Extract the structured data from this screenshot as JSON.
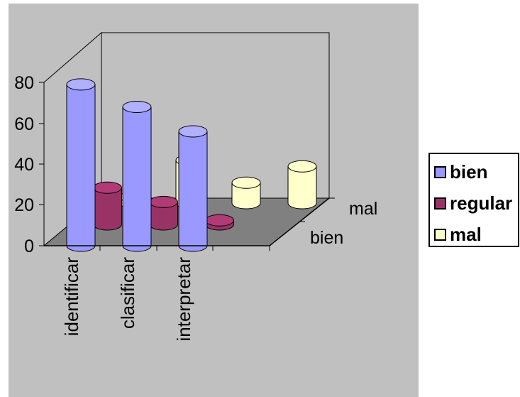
{
  "chart_data": {
    "type": "bar",
    "style": "3d-cylinder",
    "categories": [
      "identificar",
      "clasificar",
      "interpretar",
      ""
    ],
    "series": [
      {
        "name": "bien",
        "values": [
          79,
          68,
          56,
          null
        ],
        "color": "#9999ff"
      },
      {
        "name": "regular",
        "values": [
          18,
          11,
          2,
          null
        ],
        "color": "#993366"
      },
      {
        "name": "mal",
        "values": [
          3,
          21,
          10,
          18
        ],
        "color": "#ffffcc"
      }
    ],
    "ylim": [
      0,
      80
    ],
    "yticks": [
      "0",
      "20",
      "40",
      "60",
      "80"
    ],
    "depth_labels": [
      "bien",
      "mal"
    ],
    "grid": false,
    "legend": "right"
  }
}
